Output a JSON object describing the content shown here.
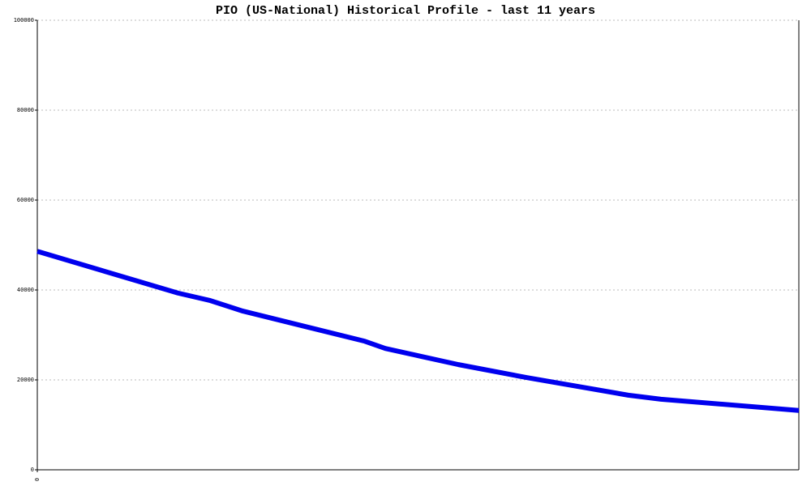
{
  "chart_data": {
    "type": "line",
    "title": "PIO (US-National) Historical Profile - last 11 years",
    "x": [
      0,
      18.5,
      22.6,
      27.0,
      43.0,
      45.7,
      50.5,
      55.3,
      64.3,
      77.6,
      81.9,
      100
    ],
    "series": [
      {
        "name": "PIO",
        "color": "#0000ee",
        "values": [
          48600,
          39300,
          37700,
          35300,
          28600,
          27000,
          25200,
          23400,
          20500,
          16600,
          15700,
          13200
        ]
      }
    ],
    "xlim": [
      0,
      100
    ],
    "xticks": [
      0
    ],
    "ylim": [
      0,
      100000
    ],
    "yticks": [
      0,
      20000,
      40000,
      60000,
      80000,
      100000
    ],
    "grid": true
  }
}
